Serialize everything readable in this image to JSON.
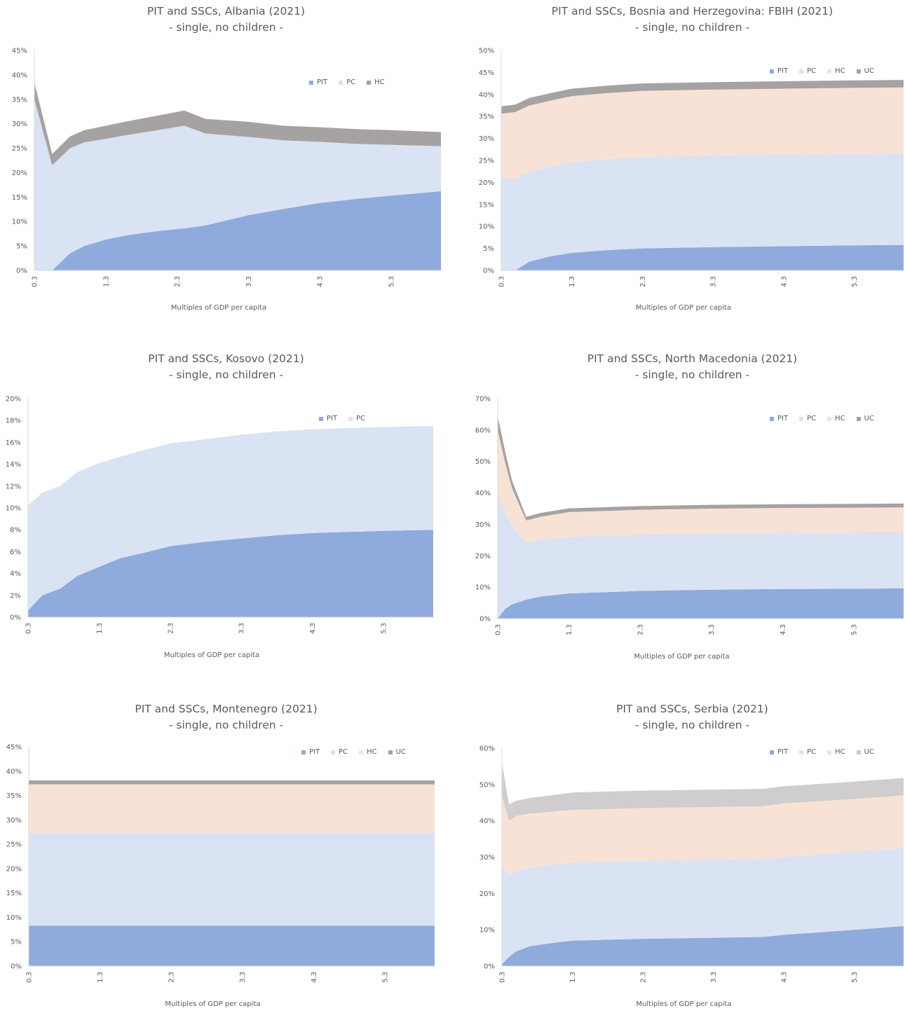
{
  "chart_data": [
    {
      "type": "area",
      "stacked": true,
      "title": "PIT and SSCs, Albania (2021)",
      "subtitle": "- single, no children -",
      "xlabel": "Multiples of GDP per capita",
      "ylim": [
        0,
        45
      ],
      "yticks": [
        0,
        5,
        10,
        15,
        20,
        25,
        30,
        35,
        40,
        45
      ],
      "xticks": [
        "0.3",
        "1.3",
        "2.3",
        "3.3",
        "4.3",
        "5.3"
      ],
      "xlim": [
        0.3,
        6.0
      ],
      "legend_position": "top-right",
      "x": [
        0.3,
        0.55,
        0.8,
        1.0,
        1.3,
        1.6,
        2.0,
        2.4,
        2.7,
        3.3,
        3.8,
        4.3,
        4.8,
        5.3,
        6.0
      ],
      "series": [
        {
          "name": "PIT",
          "color": "#8faadc",
          "values": [
            0,
            0,
            3.5,
            5.0,
            6.3,
            7.2,
            8.0,
            8.6,
            9.2,
            11.3,
            12.6,
            13.8,
            14.6,
            15.3,
            16.2
          ]
        },
        {
          "name": "PC",
          "color": "#dae3f3",
          "values": [
            35.0,
            21.5,
            21.5,
            21.2,
            20.6,
            20.5,
            20.6,
            21.0,
            18.8,
            16.0,
            14.0,
            12.5,
            11.3,
            10.4,
            9.2
          ]
        },
        {
          "name": "HC",
          "color": "#a6a2a2",
          "values": [
            3.5,
            2.3,
            2.4,
            2.5,
            2.7,
            2.8,
            3.0,
            3.1,
            3.0,
            3.1,
            3.0,
            3.0,
            3.0,
            3.0,
            2.9
          ]
        }
      ]
    },
    {
      "type": "area",
      "stacked": true,
      "title": "PIT and SSCs, Bosnia and Herzegovina: FBIH (2021)",
      "subtitle": "- single, no children -",
      "xlabel": "Multiples of GDP per capita",
      "ylim": [
        0,
        50
      ],
      "yticks": [
        0,
        5,
        10,
        15,
        20,
        25,
        30,
        35,
        40,
        45,
        50
      ],
      "xticks": [
        "0.3",
        "1.3",
        "2.3",
        "3.3",
        "4.3",
        "5.3"
      ],
      "xlim": [
        0.3,
        6.0
      ],
      "legend_position": "top-right",
      "x": [
        0.3,
        0.5,
        0.7,
        1.0,
        1.3,
        1.8,
        2.3,
        3.3,
        4.3,
        5.3,
        6.0
      ],
      "series": [
        {
          "name": "PIT",
          "color": "#8faadc",
          "values": [
            0,
            0,
            2.0,
            3.2,
            4.0,
            4.6,
            5.0,
            5.3,
            5.5,
            5.7,
            5.8
          ]
        },
        {
          "name": "PC",
          "color": "#dae3f3",
          "values": [
            20.8,
            21.0,
            20.5,
            20.4,
            20.6,
            20.7,
            20.8,
            20.8,
            20.8,
            20.8,
            20.8
          ]
        },
        {
          "name": "HC",
          "color": "#f8e2d6",
          "values": [
            14.8,
            15.0,
            15.0,
            15.0,
            15.0,
            15.0,
            15.0,
            15.0,
            15.0,
            15.0,
            15.0
          ]
        },
        {
          "name": "UC",
          "color": "#a6a2a2",
          "values": [
            1.7,
            1.7,
            1.7,
            1.7,
            1.7,
            1.7,
            1.7,
            1.7,
            1.7,
            1.7,
            1.7
          ]
        }
      ]
    },
    {
      "type": "area",
      "stacked": true,
      "title": "PIT and SSCs, Kosovo (2021)",
      "subtitle": "- single, no children -",
      "xlabel": "Multiples of GDP per capita",
      "ylim": [
        0,
        20
      ],
      "yticks": [
        0,
        2,
        4,
        6,
        8,
        10,
        12,
        14,
        16,
        18,
        20
      ],
      "xticks": [
        "0.3",
        "1.3",
        "2.3",
        "3.3",
        "4.3",
        "5.3"
      ],
      "xlim": [
        0.3,
        6.0
      ],
      "legend_position": "top-right",
      "x": [
        0.3,
        0.5,
        0.75,
        1.0,
        1.3,
        1.6,
        2.0,
        2.3,
        2.8,
        3.3,
        3.8,
        4.3,
        4.8,
        5.3,
        6.0
      ],
      "series": [
        {
          "name": "PIT",
          "color": "#8faadc",
          "values": [
            0.6,
            2.0,
            2.6,
            3.8,
            4.6,
            5.4,
            6.0,
            6.5,
            6.9,
            7.2,
            7.5,
            7.7,
            7.8,
            7.9,
            8.0
          ]
        },
        {
          "name": "PC",
          "color": "#dae3f3",
          "values": [
            9.6,
            9.4,
            9.4,
            9.5,
            9.5,
            9.3,
            9.4,
            9.4,
            9.4,
            9.5,
            9.5,
            9.5,
            9.5,
            9.5,
            9.5
          ]
        }
      ]
    },
    {
      "type": "area",
      "stacked": true,
      "title": "PIT and SSCs, North Macedonia (2021)",
      "subtitle": "- single, no children -",
      "xlabel": "Multiples of GDP per capita",
      "ylim": [
        0,
        70
      ],
      "yticks": [
        0,
        10,
        20,
        30,
        40,
        50,
        60,
        70
      ],
      "xticks": [
        "0.3",
        "1.3",
        "2.3",
        "3.3",
        "4.3",
        "5.3"
      ],
      "xlim": [
        0.3,
        6.0
      ],
      "legend_position": "top-right",
      "x": [
        0.3,
        0.4,
        0.5,
        0.7,
        0.9,
        1.3,
        2.3,
        3.3,
        4.3,
        5.3,
        6.0
      ],
      "series": [
        {
          "name": "PIT",
          "color": "#8faadc",
          "values": [
            0,
            3.0,
            4.5,
            6.0,
            7.0,
            8.0,
            8.8,
            9.2,
            9.4,
            9.5,
            9.6
          ]
        },
        {
          "name": "PC",
          "color": "#dae3f3",
          "values": [
            40.0,
            31.0,
            25.0,
            18.3,
            18.2,
            18.0,
            17.9,
            17.9,
            17.9,
            17.9,
            17.9
          ]
        },
        {
          "name": "HC",
          "color": "#f8e2d6",
          "values": [
            20.0,
            16.0,
            12.0,
            6.9,
            7.2,
            7.9,
            7.9,
            7.9,
            7.9,
            7.9,
            7.9
          ]
        },
        {
          "name": "UC",
          "color": "#a6a2a2",
          "values": [
            4.5,
            3.5,
            2.5,
            1.2,
            1.2,
            1.2,
            1.2,
            1.2,
            1.2,
            1.2,
            1.2
          ]
        }
      ]
    },
    {
      "type": "area",
      "stacked": true,
      "title": "PIT and SSCs, Montenegro (2021)",
      "subtitle": "- single, no children -",
      "xlabel": "Multiples of GDP per capita",
      "ylim": [
        0,
        45
      ],
      "yticks": [
        0,
        5,
        10,
        15,
        20,
        25,
        30,
        35,
        40,
        45
      ],
      "xticks": [
        "0.3",
        "1.3",
        "2.3",
        "3.3",
        "4.3",
        "5.3"
      ],
      "xlim": [
        0.3,
        6.0
      ],
      "legend_position": "top-right",
      "x": [
        0.3,
        6.0
      ],
      "series": [
        {
          "name": "PIT",
          "color": "#8faadc",
          "values": [
            8.3,
            8.3
          ]
        },
        {
          "name": "PC",
          "color": "#dae3f3",
          "values": [
            19.0,
            19.0
          ]
        },
        {
          "name": "HC",
          "color": "#f8e2d6",
          "values": [
            10.0,
            10.0
          ]
        },
        {
          "name": "UC",
          "color": "#a6a2a2",
          "values": [
            0.8,
            0.8
          ]
        }
      ]
    },
    {
      "type": "area",
      "stacked": true,
      "title": "PIT and SSCs, Serbia (2021)",
      "subtitle": "- single, no children -",
      "xlabel": "Multiples of GDP per capita",
      "ylim": [
        0,
        60
      ],
      "yticks": [
        0,
        10,
        20,
        30,
        40,
        50,
        60
      ],
      "xticks": [
        "0.3",
        "1.3",
        "2.3",
        "3.3",
        "4.3",
        "5.3"
      ],
      "xlim": [
        0.3,
        6.0
      ],
      "legend_position": "top-right",
      "x": [
        0.3,
        0.4,
        0.5,
        0.7,
        1.0,
        1.3,
        2.3,
        3.3,
        4.0,
        4.3,
        5.3,
        6.0
      ],
      "series": [
        {
          "name": "PIT",
          "color": "#8faadc",
          "values": [
            0.5,
            2.5,
            4.0,
            5.5,
            6.3,
            7.0,
            7.5,
            7.8,
            8.0,
            8.6,
            10.0,
            11.0
          ]
        },
        {
          "name": "PC",
          "color": "#dae3f3",
          "values": [
            27.0,
            22.5,
            22.3,
            21.5,
            21.7,
            21.5,
            21.5,
            21.5,
            21.5,
            21.5,
            21.5,
            21.5
          ]
        },
        {
          "name": "HC",
          "color": "#f8e2d6",
          "values": [
            19.5,
            15.0,
            15.0,
            15.0,
            14.5,
            14.5,
            14.5,
            14.5,
            14.5,
            14.7,
            14.5,
            14.5
          ]
        },
        {
          "name": "UC",
          "color": "#cfcdcd",
          "values": [
            9.0,
            4.5,
            4.2,
            4.3,
            4.5,
            4.8,
            4.8,
            4.8,
            4.8,
            4.7,
            4.8,
            4.8
          ]
        }
      ]
    }
  ]
}
